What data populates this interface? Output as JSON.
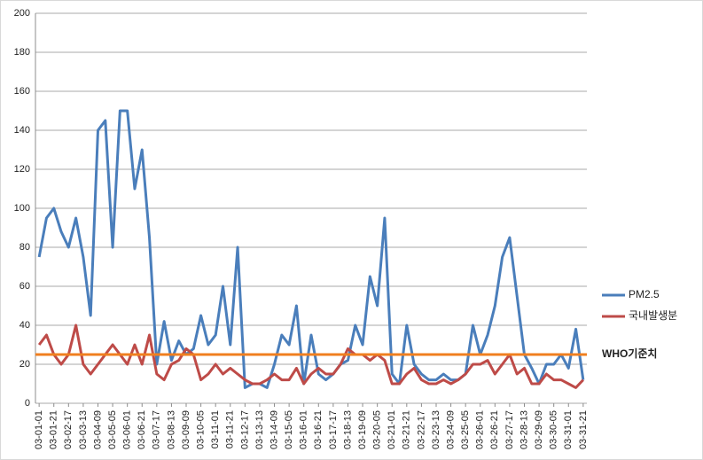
{
  "chart_data": {
    "type": "line",
    "categories": [
      "03-01-01",
      null,
      "03-01-21",
      null,
      "03-02-17",
      null,
      "03-03-13",
      null,
      "03-04-09",
      null,
      "03-05-05",
      null,
      "03-06-01",
      null,
      "03-06-21",
      null,
      "03-07-17",
      null,
      "03-08-13",
      null,
      "03-09-09",
      null,
      "03-10-05",
      null,
      "03-11-01",
      null,
      "03-11-21",
      null,
      "03-12-17",
      null,
      "03-13-13",
      null,
      "03-14-09",
      null,
      "03-15-05",
      null,
      "03-16-01",
      null,
      "03-16-21",
      null,
      "03-17-17",
      null,
      "03-18-13",
      null,
      "03-19-09",
      null,
      "03-20-05",
      null,
      "03-21-01",
      null,
      "03-21-21",
      null,
      "03-22-17",
      null,
      "03-23-13",
      null,
      "03-24-09",
      null,
      "03-25-05",
      null,
      "03-26-01",
      null,
      "03-26-21",
      null,
      "03-27-17",
      null,
      "03-28-13",
      null,
      "03-29-09",
      null,
      "03-30-05",
      null,
      "03-31-01",
      null,
      "03-31-21"
    ],
    "series": [
      {
        "name": "PM2.5",
        "color": "#4a7ebb",
        "values": [
          75,
          95,
          100,
          88,
          80,
          95,
          75,
          45,
          140,
          145,
          80,
          150,
          150,
          110,
          130,
          85,
          20,
          42,
          22,
          32,
          25,
          28,
          45,
          30,
          35,
          60,
          30,
          80,
          8,
          10,
          10,
          8,
          20,
          35,
          30,
          50,
          10,
          35,
          15,
          12,
          15,
          20,
          22,
          40,
          30,
          65,
          50,
          95,
          15,
          10,
          40,
          20,
          15,
          12,
          12,
          15,
          12,
          12,
          15,
          40,
          25,
          35,
          50,
          75,
          85,
          55,
          25,
          18,
          10,
          20,
          20,
          25,
          18,
          38,
          12
        ]
      },
      {
        "name": "국내발생분",
        "color": "#be4b48",
        "values": [
          30,
          35,
          25,
          20,
          25,
          40,
          20,
          15,
          20,
          25,
          30,
          25,
          20,
          30,
          20,
          35,
          15,
          12,
          20,
          22,
          28,
          25,
          12,
          15,
          20,
          15,
          18,
          15,
          12,
          10,
          10,
          12,
          15,
          12,
          12,
          18,
          10,
          15,
          18,
          15,
          15,
          20,
          28,
          25,
          25,
          22,
          25,
          22,
          10,
          10,
          15,
          18,
          12,
          10,
          10,
          12,
          10,
          12,
          15,
          20,
          20,
          22,
          15,
          20,
          25,
          15,
          18,
          10,
          10,
          15,
          12,
          12,
          10,
          8,
          12
        ]
      }
    ],
    "reference_line": {
      "label": "WHO기준치",
      "value": 25,
      "color": "#f07f1f"
    },
    "ylim": [
      0,
      200
    ],
    "yticks": [
      0,
      20,
      40,
      60,
      80,
      100,
      120,
      140,
      160,
      180,
      200
    ],
    "grid": true,
    "legend": "right"
  }
}
